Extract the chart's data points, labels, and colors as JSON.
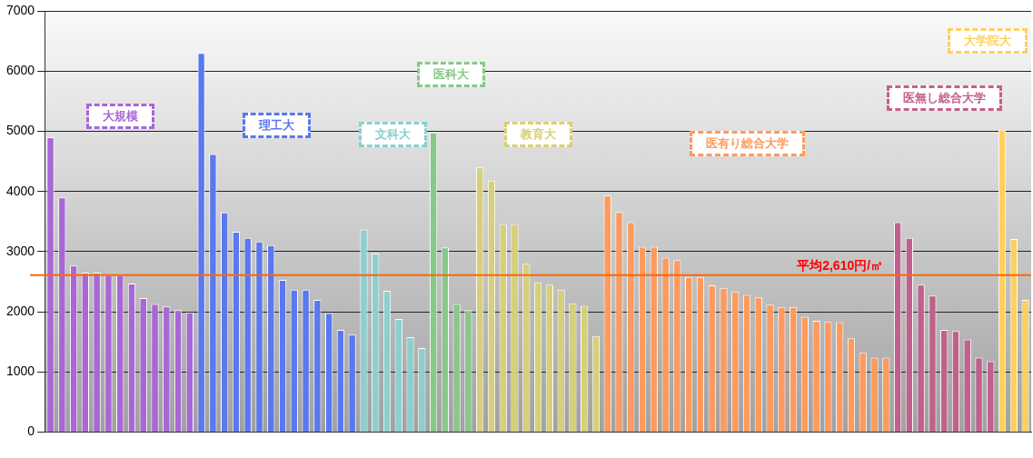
{
  "chart_data": {
    "type": "bar",
    "categories": [
      null,
      null,
      null,
      null,
      null,
      null,
      null,
      null,
      null,
      null,
      null,
      null,
      null,
      null,
      null,
      null,
      null,
      null,
      null,
      null,
      null,
      null,
      null,
      null,
      null,
      null,
      null,
      null,
      null,
      null,
      null,
      null,
      null,
      null,
      null,
      null,
      null,
      null,
      null,
      null,
      null,
      null,
      null,
      null,
      null,
      null,
      null,
      null,
      null,
      null,
      null,
      null,
      null,
      null,
      null,
      null,
      null,
      null,
      null,
      null,
      null,
      null,
      null,
      null,
      null,
      null,
      null,
      null,
      null,
      null,
      null,
      null,
      null,
      null,
      null,
      null,
      null,
      null,
      null,
      null,
      null,
      null,
      null,
      null,
      null
    ],
    "series": [
      {
        "name": "大規模",
        "color": "#a966d6",
        "values": [
          4900,
          3900,
          2770,
          2650,
          2650,
          2610,
          2610,
          2470,
          2230,
          2130,
          2090,
          2030,
          1990,
          null,
          null,
          null,
          null,
          null,
          null,
          null,
          null,
          null,
          null,
          null,
          null,
          null,
          null,
          null,
          null,
          null,
          null,
          null,
          null,
          null,
          null,
          null,
          null,
          null,
          null,
          null,
          null,
          null,
          null,
          null,
          null,
          null,
          null,
          null,
          null,
          null,
          null,
          null,
          null,
          null,
          null,
          null,
          null,
          null,
          null,
          null,
          null,
          null,
          null,
          null,
          null,
          null,
          null,
          null,
          null,
          null,
          null,
          null,
          null,
          null,
          null,
          null,
          null,
          null,
          null,
          null,
          null,
          null,
          null,
          null,
          null
        ]
      },
      {
        "name": "理工大",
        "color": "#5a78f0",
        "values": [
          null,
          null,
          null,
          null,
          null,
          null,
          null,
          null,
          null,
          null,
          null,
          null,
          null,
          6300,
          4620,
          3650,
          3330,
          3230,
          3170,
          3110,
          2530,
          2370,
          2370,
          2200,
          1980,
          1700,
          1620,
          null,
          null,
          null,
          null,
          null,
          null,
          null,
          null,
          null,
          null,
          null,
          null,
          null,
          null,
          null,
          null,
          null,
          null,
          null,
          null,
          null,
          null,
          null,
          null,
          null,
          null,
          null,
          null,
          null,
          null,
          null,
          null,
          null,
          null,
          null,
          null,
          null,
          null,
          null,
          null,
          null,
          null,
          null,
          null,
          null,
          null,
          null,
          null,
          null,
          null,
          null,
          null,
          null,
          null,
          null,
          null,
          null,
          null
        ]
      },
      {
        "name": "文科大",
        "color": "#8ccfcf",
        "values": [
          null,
          null,
          null,
          null,
          null,
          null,
          null,
          null,
          null,
          null,
          null,
          null,
          null,
          null,
          null,
          null,
          null,
          null,
          null,
          null,
          null,
          null,
          null,
          null,
          null,
          null,
          null,
          3370,
          2970,
          2350,
          1880,
          1580,
          1400,
          null,
          null,
          null,
          null,
          null,
          null,
          null,
          null,
          null,
          null,
          null,
          null,
          null,
          null,
          null,
          null,
          null,
          null,
          null,
          null,
          null,
          null,
          null,
          null,
          null,
          null,
          null,
          null,
          null,
          null,
          null,
          null,
          null,
          null,
          null,
          null,
          null,
          null,
          null,
          null,
          null,
          null,
          null,
          null,
          null,
          null,
          null,
          null,
          null,
          null,
          null,
          null
        ]
      },
      {
        "name": "医科大",
        "color": "#88c888",
        "values": [
          null,
          null,
          null,
          null,
          null,
          null,
          null,
          null,
          null,
          null,
          null,
          null,
          null,
          null,
          null,
          null,
          null,
          null,
          null,
          null,
          null,
          null,
          null,
          null,
          null,
          null,
          null,
          null,
          null,
          null,
          null,
          null,
          null,
          4980,
          3070,
          2130,
          2030,
          null,
          null,
          null,
          null,
          null,
          null,
          null,
          null,
          null,
          null,
          null,
          null,
          null,
          null,
          null,
          null,
          null,
          null,
          null,
          null,
          null,
          null,
          null,
          null,
          null,
          null,
          null,
          null,
          null,
          null,
          null,
          null,
          null,
          null,
          null,
          null,
          null,
          null,
          null,
          null,
          null,
          null,
          null,
          null,
          null,
          null,
          null,
          null
        ]
      },
      {
        "name": "教育大",
        "color": "#d6d078",
        "values": [
          null,
          null,
          null,
          null,
          null,
          null,
          null,
          null,
          null,
          null,
          null,
          null,
          null,
          null,
          null,
          null,
          null,
          null,
          null,
          null,
          null,
          null,
          null,
          null,
          null,
          null,
          null,
          null,
          null,
          null,
          null,
          null,
          null,
          null,
          null,
          null,
          null,
          4400,
          4180,
          3460,
          3460,
          2800,
          2490,
          2450,
          2370,
          2140,
          2100,
          1600,
          null,
          null,
          null,
          null,
          null,
          null,
          null,
          null,
          null,
          null,
          null,
          null,
          null,
          null,
          null,
          null,
          null,
          null,
          null,
          null,
          null,
          null,
          null,
          null,
          null,
          null,
          null,
          null,
          null,
          null,
          null,
          null,
          null,
          null,
          null,
          null,
          null
        ]
      },
      {
        "name": "医有り総合大学",
        "color": "#ff9a5c",
        "values": [
          null,
          null,
          null,
          null,
          null,
          null,
          null,
          null,
          null,
          null,
          null,
          null,
          null,
          null,
          null,
          null,
          null,
          null,
          null,
          null,
          null,
          null,
          null,
          null,
          null,
          null,
          null,
          null,
          null,
          null,
          null,
          null,
          null,
          null,
          null,
          null,
          null,
          null,
          null,
          null,
          null,
          null,
          null,
          null,
          null,
          null,
          null,
          null,
          3930,
          3660,
          3490,
          3080,
          3080,
          2900,
          2860,
          2580,
          2580,
          2440,
          2400,
          2340,
          2280,
          2240,
          2120,
          2080,
          2080,
          1920,
          1850,
          1840,
          1830,
          1560,
          1320,
          1240,
          1240,
          null,
          null,
          null,
          null,
          null,
          null,
          null,
          null,
          null,
          null,
          null,
          null
        ]
      },
      {
        "name": "医無し総合大学",
        "color": "#c2608c",
        "values": [
          null,
          null,
          null,
          null,
          null,
          null,
          null,
          null,
          null,
          null,
          null,
          null,
          null,
          null,
          null,
          null,
          null,
          null,
          null,
          null,
          null,
          null,
          null,
          null,
          null,
          null,
          null,
          null,
          null,
          null,
          null,
          null,
          null,
          null,
          null,
          null,
          null,
          null,
          null,
          null,
          null,
          null,
          null,
          null,
          null,
          null,
          null,
          null,
          null,
          null,
          null,
          null,
          null,
          null,
          null,
          null,
          null,
          null,
          null,
          null,
          null,
          null,
          null,
          null,
          null,
          null,
          null,
          null,
          null,
          null,
          null,
          null,
          null,
          3490,
          3230,
          2450,
          2270,
          1700,
          1680,
          1540,
          1240,
          1180,
          null,
          null,
          null
        ]
      },
      {
        "name": "大学院大",
        "color": "#ffd060",
        "values": [
          null,
          null,
          null,
          null,
          null,
          null,
          null,
          null,
          null,
          null,
          null,
          null,
          null,
          null,
          null,
          null,
          null,
          null,
          null,
          null,
          null,
          null,
          null,
          null,
          null,
          null,
          null,
          null,
          null,
          null,
          null,
          null,
          null,
          null,
          null,
          null,
          null,
          null,
          null,
          null,
          null,
          null,
          null,
          null,
          null,
          null,
          null,
          null,
          null,
          null,
          null,
          null,
          null,
          null,
          null,
          null,
          null,
          null,
          null,
          null,
          null,
          null,
          null,
          null,
          null,
          null,
          null,
          null,
          null,
          null,
          null,
          null,
          null,
          null,
          null,
          null,
          null,
          null,
          null,
          null,
          null,
          null,
          5030,
          3210,
          2200
        ]
      }
    ],
    "ylim": [
      0,
      7000
    ],
    "yticks": [
      0,
      1000,
      2000,
      3000,
      4000,
      5000,
      6000,
      7000
    ],
    "grid": "y",
    "legend": false,
    "ref_lines": [
      {
        "axis": "y",
        "value": 2610,
        "label": "平均2,610円/㎡",
        "color": "#ff6600"
      }
    ]
  }
}
